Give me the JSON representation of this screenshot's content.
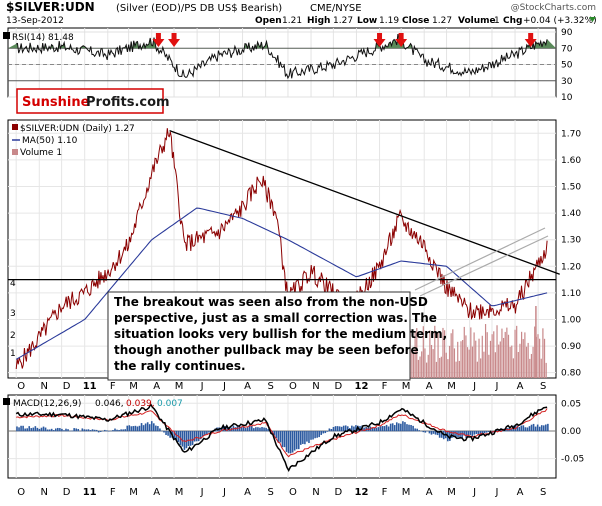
{
  "header": {
    "symbol": "$SILVER:UDN",
    "description": "(Silver (EOD)/PS DB US$ Bearish)",
    "exchange": "CME/NYSE",
    "watermark": "@StockCharts.com",
    "date": "13-Sep-2012",
    "ohlc": {
      "open_label": "Open",
      "open": "1.21",
      "high_label": "High",
      "high": "1.27",
      "low_label": "Low",
      "low": "1.19",
      "close_label": "Close",
      "close": "1.27",
      "volume_label": "Volume",
      "volume": "1",
      "chg_label": "Chg",
      "chg": "+0.04 (+3.32%)"
    }
  },
  "logo": {
    "part1": "Sunshine",
    "part2": "Profits.com"
  },
  "rsi_panel": {
    "legend": "RSI(14) 81.48",
    "ticks": [
      "90",
      "70",
      "50",
      "30",
      "10"
    ]
  },
  "price_panel": {
    "legend_main": "$SILVER:UDN (Daily) 1.27",
    "legend_ma": "MA(50) 1.10",
    "legend_vol": "Volume 1",
    "price_ticks": [
      "1.70",
      "1.60",
      "1.50",
      "1.40",
      "1.30",
      "1.20",
      "1.10",
      "1.00",
      "0.90",
      "0.80"
    ],
    "volume_ticks": [
      "4",
      "3",
      "2",
      "1"
    ],
    "months": [
      "O",
      "N",
      "D",
      "11",
      "F",
      "M",
      "A",
      "M",
      "J",
      "J",
      "A",
      "S",
      "O",
      "N",
      "D",
      "12",
      "F",
      "M",
      "A",
      "M",
      "J",
      "J",
      "A",
      "S"
    ],
    "annotation": [
      "The breakout was seen also from the non-USD",
      "perspective, just as a small correction was. The",
      "situation looks very bullish for the medium term,",
      "though another pullback may be seen before",
      "the rally continues."
    ]
  },
  "macd_panel": {
    "legend_label": "MACD(12,26,9)",
    "value1": "0.046,",
    "value2": "0.039,",
    "value3": "0.007",
    "ticks": [
      "0.05",
      "0.00",
      "-0.05"
    ]
  },
  "colors": {
    "price": "#8b0000",
    "ma": "#2a3a9a",
    "volume": "#c8888a",
    "rsi_fill": "#5a8a5a",
    "macd": "#000000",
    "signal": "#d42020",
    "histogram": "#2c5aa0",
    "arrow": "#e01010"
  },
  "chart_data": {
    "type": "line",
    "title": "$SILVER:UDN (Silver (EOD)/PS DB US$ Bearish)",
    "series": [
      {
        "name": "$SILVER:UDN (Daily)",
        "x": [
          "2010-10-01",
          "2010-11-01",
          "2010-12-01",
          "2011-01-01",
          "2011-02-01",
          "2011-03-01",
          "2011-04-01",
          "2011-04-25",
          "2011-05-15",
          "2011-06-01",
          "2011-07-01",
          "2011-08-01",
          "2011-08-25",
          "2011-09-15",
          "2011-10-01",
          "2011-11-01",
          "2011-12-01",
          "2011-12-29",
          "2012-02-01",
          "2012-02-28",
          "2012-04-01",
          "2012-05-01",
          "2012-06-01",
          "2012-07-01",
          "2012-08-01",
          "2012-09-13"
        ],
        "values": [
          0.82,
          0.93,
          1.05,
          1.1,
          1.18,
          1.28,
          1.55,
          1.71,
          1.28,
          1.3,
          1.33,
          1.42,
          1.53,
          1.4,
          1.08,
          1.18,
          1.1,
          1.06,
          1.2,
          1.38,
          1.28,
          1.12,
          1.03,
          1.04,
          1.05,
          1.27
        ]
      },
      {
        "name": "MA(50)",
        "x": [
          "2010-10-01",
          "2011-01-01",
          "2011-04-01",
          "2011-06-01",
          "2011-08-01",
          "2011-10-01",
          "2012-01-01",
          "2012-03-01",
          "2012-05-01",
          "2012-07-01",
          "2012-09-13"
        ],
        "values": [
          0.85,
          1.0,
          1.3,
          1.42,
          1.38,
          1.3,
          1.16,
          1.22,
          1.2,
          1.05,
          1.1
        ]
      }
    ],
    "ylim": [
      0.78,
      1.75
    ],
    "trendlines": [
      {
        "name": "resistance",
        "from": [
          "2011-04-25",
          1.71
        ],
        "to": [
          "2012-09-30",
          1.17
        ]
      },
      {
        "name": "support",
        "from": [
          "2010-10-01",
          1.15
        ],
        "to": [
          "2012-09-30",
          1.15
        ]
      }
    ],
    "rsi": {
      "x": [
        "2010-10-01",
        "2010-12-01",
        "2011-02-01",
        "2011-04-01",
        "2011-05-15",
        "2011-07-01",
        "2011-09-01",
        "2011-10-01",
        "2011-12-01",
        "2012-02-01",
        "2012-02-28",
        "2012-04-01",
        "2012-06-01",
        "2012-08-01",
        "2012-09-13"
      ],
      "values": [
        70,
        72,
        62,
        80,
        35,
        62,
        75,
        38,
        50,
        72,
        82,
        55,
        40,
        62,
        81.48
      ],
      "ylim": [
        10,
        95
      ]
    },
    "macd": {
      "x": [
        "2010-10-01",
        "2010-12-01",
        "2011-02-01",
        "2011-04-01",
        "2011-05-15",
        "2011-07-01",
        "2011-09-01",
        "2011-10-01",
        "2011-12-01",
        "2012-02-01",
        "2012-03-01",
        "2012-05-01",
        "2012-06-01",
        "2012-08-01",
        "2012-09-13"
      ],
      "macd": [
        0.03,
        0.03,
        0.02,
        0.045,
        -0.04,
        0.005,
        0.02,
        -0.07,
        -0.01,
        0.015,
        0.04,
        -0.01,
        -0.015,
        0.01,
        0.046
      ],
      "signal": [
        0.025,
        0.028,
        0.02,
        0.035,
        -0.02,
        0.0,
        0.015,
        -0.045,
        -0.015,
        0.01,
        0.03,
        0.0,
        -0.01,
        0.005,
        0.039
      ],
      "ylim": [
        -0.085,
        0.065
      ]
    }
  }
}
